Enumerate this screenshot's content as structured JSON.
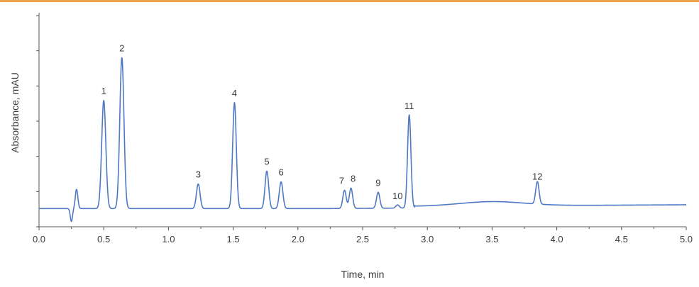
{
  "chart_data": {
    "type": "line",
    "xlabel": "Time, min",
    "ylabel": "Absorbance, mAU",
    "xlim": [
      0.0,
      5.0
    ],
    "ylim": [
      0,
      100
    ],
    "x_ticks": [
      "0.0",
      "0.5",
      "1.0",
      "1.5",
      "2.0",
      "2.5",
      "3.0",
      "3.5",
      "4.0",
      "4.5",
      "5.0"
    ],
    "y_ticks_labeled": false,
    "grid": false,
    "baseline": 8.5,
    "peaks": [
      {
        "label": "1",
        "rt": 0.5,
        "height": 59
      },
      {
        "label": "2",
        "rt": 0.64,
        "height": 79
      },
      {
        "label": "3",
        "rt": 1.23,
        "height": 20
      },
      {
        "label": "4",
        "rt": 1.51,
        "height": 58
      },
      {
        "label": "5",
        "rt": 1.76,
        "height": 26
      },
      {
        "label": "6",
        "rt": 1.87,
        "height": 21
      },
      {
        "label": "7",
        "rt": 2.36,
        "height": 17
      },
      {
        "label": "8",
        "rt": 2.41,
        "height": 18
      },
      {
        "label": "9",
        "rt": 2.62,
        "height": 16
      },
      {
        "label": "10",
        "rt": 2.77,
        "height": 10
      },
      {
        "label": "11",
        "rt": 2.86,
        "height": 52
      },
      {
        "label": "12",
        "rt": 3.85,
        "height": 19
      }
    ],
    "colors": {
      "trace": "#4f78c4",
      "axis": "#555555",
      "accent_rule": "#f0a24a"
    }
  }
}
